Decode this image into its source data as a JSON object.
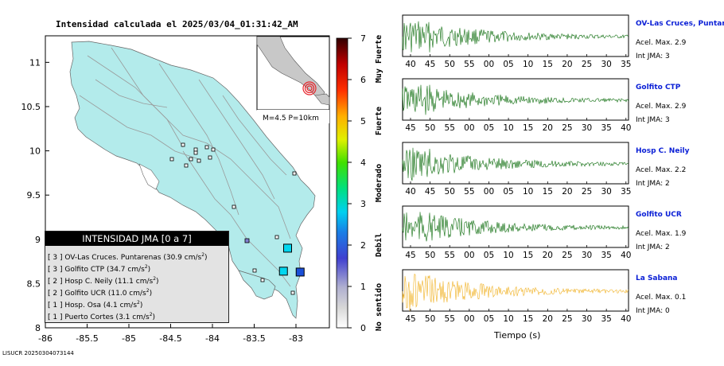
{
  "title": "Intensidad calculada el 2025/03/04_01:31:42_AM",
  "map": {
    "lat_ticks": [
      "11",
      "10.5",
      "10",
      "9.5",
      "9",
      "8.5",
      "8"
    ],
    "lon_ticks": [
      "-86",
      "-85.5",
      "-85",
      "-84.5",
      "-84",
      "-83.5",
      "-83"
    ],
    "inset_label": "M=4.5 P=10km",
    "colors": {
      "land": "#b3ebeb",
      "water": "#ffffff",
      "epicenter": "#e8242b"
    },
    "markers": [
      {
        "lon": -83.1,
        "lat": 8.9,
        "color": "#00d6ef",
        "label": "OV-Las Cruces"
      },
      {
        "lon": -83.15,
        "lat": 8.64,
        "color": "#00d6ef",
        "label": "Golfito"
      },
      {
        "lon": -82.95,
        "lat": 8.63,
        "color": "#1a4fd8",
        "label": "Hosp C. Neily"
      }
    ]
  },
  "colorbar": {
    "ticks": [
      "0",
      "1",
      "2",
      "3",
      "4",
      "5",
      "6",
      "7"
    ],
    "labels": [
      "No sentido",
      "Debil",
      "Moderado",
      "Fuerte",
      "Muy Fuerte"
    ]
  },
  "legend": {
    "header": "INTENSIDAD JMA [0 a 7]",
    "items": [
      {
        "level": "[ 3 ]",
        "name": "OV-Las Cruces. Puntarenas (30.9 cm/s",
        "sup": "2",
        "close": ")"
      },
      {
        "level": "[ 3 ]",
        "name": "Golfito CTP (34.7 cm/s",
        "sup": "2",
        "close": ")"
      },
      {
        "level": "[ 2 ]",
        "name": "Hosp C. Neily (11.1 cm/s",
        "sup": "2",
        "close": ")"
      },
      {
        "level": "[ 2 ]",
        "name": "Golfito UCR (11.0 cm/s",
        "sup": "2",
        "close": ")"
      },
      {
        "level": "[ 1 ]",
        "name": "Hosp. Osa (4.1 cm/s",
        "sup": "2",
        "close": ")"
      },
      {
        "level": "[ 1 ]",
        "name": "Puerto Cortes (3.1 cm/s",
        "sup": "2",
        "close": ")"
      }
    ]
  },
  "stations": [
    {
      "name": "OV-Las Cruces, Puntar",
      "acel": "Acel. Max. 2.9",
      "int": "Int JMA: 3",
      "color": "#0a6b0a",
      "ticks": [
        "40",
        "45",
        "50",
        "55",
        "00",
        "05",
        "10",
        "15",
        "20",
        "25",
        "30",
        "35"
      ]
    },
    {
      "name": "Golfito CTP",
      "acel": "Acel. Max. 2.9",
      "int": "Int JMA: 3",
      "color": "#0a6b0a",
      "ticks": [
        "45",
        "50",
        "55",
        "00",
        "05",
        "10",
        "15",
        "20",
        "25",
        "30",
        "35",
        "40"
      ]
    },
    {
      "name": "Hosp C. Neily",
      "acel": "Acel. Max. 2.2",
      "int": "Int JMA: 2",
      "color": "#0a6b0a",
      "ticks": [
        "40",
        "45",
        "50",
        "55",
        "00",
        "05",
        "10",
        "15",
        "20",
        "25",
        "30",
        "35"
      ]
    },
    {
      "name": "Golfito UCR",
      "acel": "Acel. Max. 1.9",
      "int": "Int JMA: 2",
      "color": "#0a6b0a",
      "ticks": [
        "45",
        "50",
        "55",
        "00",
        "05",
        "10",
        "15",
        "20",
        "25",
        "30",
        "35",
        "40"
      ]
    },
    {
      "name": "La Sabana",
      "acel": "Acel. Max. 0.1",
      "int": "Int JMA: 0",
      "color": "#f0b020",
      "ticks": [
        "45",
        "50",
        "55",
        "00",
        "05",
        "10",
        "15",
        "20",
        "25",
        "30",
        "35",
        "40"
      ]
    }
  ],
  "xaxis_title": "Tiempo (s)",
  "footer": "LISUCR 20250304073144"
}
